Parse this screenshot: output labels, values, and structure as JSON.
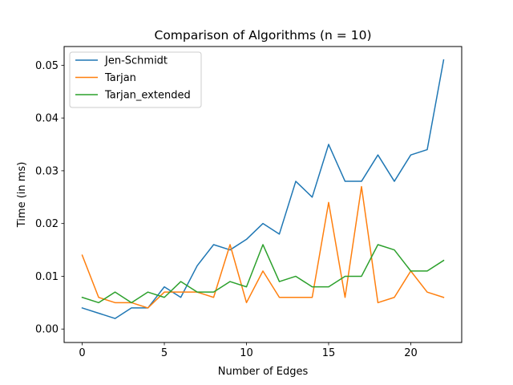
{
  "chart_data": {
    "type": "line",
    "title": "Comparison of Algorithms (n = 10)",
    "xlabel": "Number of Edges",
    "ylabel": "Time (in ms)",
    "xlim": [
      -1.1,
      23.1
    ],
    "ylim": [
      -0.00255,
      0.05355
    ],
    "xticks": [
      0,
      5,
      10,
      15,
      20
    ],
    "yticks": [
      0.0,
      0.01,
      0.02,
      0.03,
      0.04,
      0.05
    ],
    "ytick_labels": [
      "0.00",
      "0.01",
      "0.02",
      "0.03",
      "0.04",
      "0.05"
    ],
    "grid": false,
    "legend_position": "upper-left",
    "x": [
      0,
      1,
      2,
      3,
      4,
      5,
      6,
      7,
      8,
      9,
      10,
      11,
      12,
      13,
      14,
      15,
      16,
      17,
      18,
      19,
      20,
      21,
      22
    ],
    "series": [
      {
        "name": "Jen-Schmidt",
        "color": "#1f77b4",
        "values": [
          0.004,
          0.003,
          0.002,
          0.004,
          0.004,
          0.008,
          0.006,
          0.012,
          0.016,
          0.015,
          0.017,
          0.02,
          0.018,
          0.028,
          0.025,
          0.035,
          0.028,
          0.028,
          0.033,
          0.028,
          0.033,
          0.034,
          0.051
        ]
      },
      {
        "name": "Tarjan",
        "color": "#ff7f0e",
        "values": [
          0.014,
          0.006,
          0.005,
          0.005,
          0.004,
          0.007,
          0.007,
          0.007,
          0.006,
          0.016,
          0.005,
          0.011,
          0.006,
          0.006,
          0.006,
          0.024,
          0.006,
          0.027,
          0.005,
          0.006,
          0.011,
          0.007,
          0.006
        ]
      },
      {
        "name": "Tarjan_extended",
        "color": "#2ca02c",
        "values": [
          0.006,
          0.005,
          0.007,
          0.005,
          0.007,
          0.006,
          0.009,
          0.007,
          0.007,
          0.009,
          0.008,
          0.016,
          0.009,
          0.01,
          0.008,
          0.008,
          0.01,
          0.01,
          0.016,
          0.015,
          0.011,
          0.011,
          0.013
        ]
      }
    ]
  }
}
